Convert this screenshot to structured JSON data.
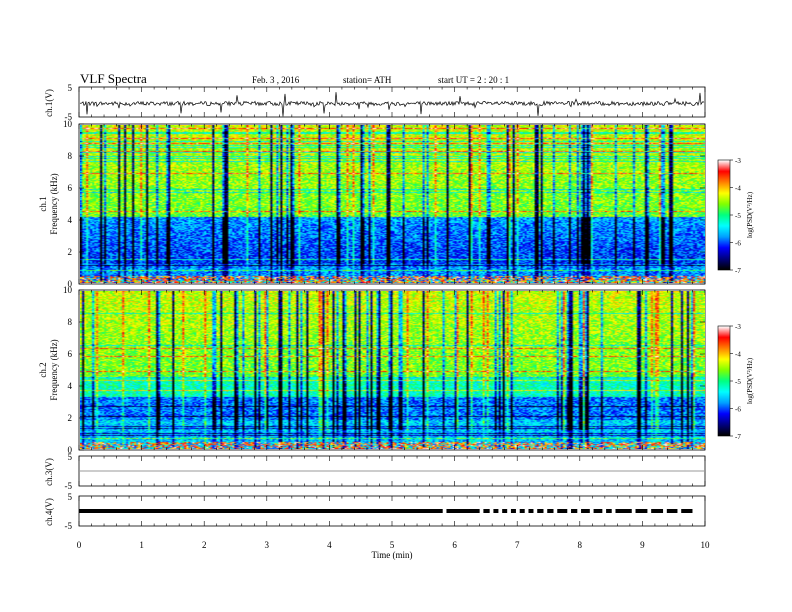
{
  "header": {
    "title": "VLF  Spectra",
    "date": "Feb. 3  , 2016",
    "station": "station= ATH",
    "start": "start  UT  =   2  : 20 : 1"
  },
  "chart_data": [
    {
      "type": "line",
      "panel": "ch1-timeseries",
      "ylabel": "ch.1(V)",
      "yticks": [
        "5",
        "-5"
      ],
      "ylim": [
        -5,
        5
      ],
      "xlim": [
        0,
        10
      ],
      "note_value": "noisy waveform near -0.5 V"
    },
    {
      "type": "heatmap",
      "panel": "ch1-spectrogram",
      "ylabel": "ch.1 Frequency  (kHz)",
      "yticks": [
        "0",
        "2",
        "4",
        "6",
        "8",
        "10"
      ],
      "ylim": [
        0,
        10
      ],
      "xlim": [
        0,
        10
      ],
      "colorbar": {
        "label": "log(PSD(V²/Hz)",
        "ticks": [
          "-3",
          "-4",
          "-5",
          "-6",
          "-7"
        ],
        "range": [
          -7,
          -3
        ]
      }
    },
    {
      "type": "heatmap",
      "panel": "ch2-spectrogram",
      "ylabel": "ch.2 Frequency  (kHz)",
      "yticks": [
        "0",
        "2",
        "4",
        "6",
        "8",
        "10"
      ],
      "ylim": [
        0,
        10
      ],
      "xlim": [
        0,
        10
      ],
      "colorbar": {
        "label": "log(PSD(V²/Hz)",
        "ticks": [
          "-3",
          "-4",
          "-5",
          "-6",
          "-7"
        ],
        "range": [
          -7,
          -3
        ]
      }
    },
    {
      "type": "line",
      "panel": "ch3-timeseries",
      "ylabel": "ch.3(V)",
      "yticks": [
        "5",
        "-5"
      ],
      "ylim": [
        -5,
        5
      ],
      "xlim": [
        0,
        10
      ]
    },
    {
      "type": "line",
      "panel": "ch4-timeseries",
      "ylabel": "ch.4(V)",
      "yticks": [
        "5",
        "-5"
      ],
      "ylim": [
        -5,
        5
      ],
      "xlim": [
        0,
        10
      ],
      "gaps_min": [
        5.83,
        6.42,
        6.58,
        6.72,
        6.86,
        7.0,
        7.14,
        7.28,
        7.44,
        7.6,
        7.82,
        7.98,
        8.18,
        8.38,
        8.53,
        8.85,
        9.1,
        9.35,
        9.58
      ]
    }
  ],
  "xaxis": {
    "label": "Time  (min)",
    "ticks": [
      "0",
      "1",
      "2",
      "3",
      "4",
      "5",
      "6",
      "7",
      "8",
      "9",
      "10"
    ]
  },
  "colors": {
    "colormap": [
      "#000000",
      "#000080",
      "#0000ff",
      "#00a0ff",
      "#00ffff",
      "#00ff80",
      "#80ff00",
      "#ffff00",
      "#ff8000",
      "#ff0000",
      "#ffffff"
    ]
  }
}
